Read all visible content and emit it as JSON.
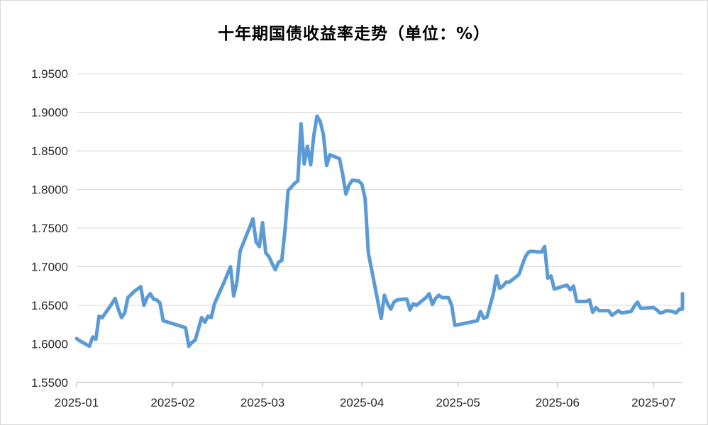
{
  "chart_data": {
    "type": "line",
    "title": "十年期国债收益率走势（单位：%）",
    "xlabel": "",
    "ylabel": "",
    "ylim": [
      1.55,
      1.95
    ],
    "yticks": [
      1.55,
      1.6,
      1.65,
      1.7,
      1.75,
      1.8,
      1.85,
      1.9,
      1.95
    ],
    "ytick_labels": [
      "1.5500",
      "1.6000",
      "1.6500",
      "1.7000",
      "1.7500",
      "1.8000",
      "1.8500",
      "1.9000",
      "1.9500"
    ],
    "xlim": [
      "2025-01-02",
      "2025-07-10"
    ],
    "xticks": [
      "2025-01-02",
      "2025-02-01",
      "2025-03-01",
      "2025-04-01",
      "2025-05-01",
      "2025-06-01",
      "2025-07-01"
    ],
    "xtick_labels": [
      "2025-01",
      "2025-02",
      "2025-03",
      "2025-04",
      "2025-05",
      "2025-06",
      "2025-07"
    ],
    "grid": true,
    "legend": "none",
    "line_color": "#5b9bd5",
    "series": [
      {
        "points": [
          [
            "2025-01-02",
            1.607
          ],
          [
            "2025-01-03",
            1.604
          ],
          [
            "2025-01-06",
            1.597
          ],
          [
            "2025-01-07",
            1.609
          ],
          [
            "2025-01-08",
            1.606
          ],
          [
            "2025-01-09",
            1.636
          ],
          [
            "2025-01-10",
            1.634
          ],
          [
            "2025-01-13",
            1.652
          ],
          [
            "2025-01-14",
            1.659
          ],
          [
            "2025-01-15",
            1.645
          ],
          [
            "2025-01-16",
            1.634
          ],
          [
            "2025-01-17",
            1.64
          ],
          [
            "2025-01-18",
            1.66
          ],
          [
            "2025-01-20",
            1.668
          ],
          [
            "2025-01-22",
            1.674
          ],
          [
            "2025-01-23",
            1.65
          ],
          [
            "2025-01-24",
            1.66
          ],
          [
            "2025-01-25",
            1.665
          ],
          [
            "2025-01-26",
            1.658
          ],
          [
            "2025-01-27",
            1.657
          ],
          [
            "2025-01-28",
            1.653
          ],
          [
            "2025-01-29",
            1.63
          ],
          [
            "2025-02-05",
            1.621
          ],
          [
            "2025-02-06",
            1.597
          ],
          [
            "2025-02-07",
            1.602
          ],
          [
            "2025-02-08",
            1.605
          ],
          [
            "2025-02-10",
            1.634
          ],
          [
            "2025-02-11",
            1.628
          ],
          [
            "2025-02-12",
            1.636
          ],
          [
            "2025-02-13",
            1.634
          ],
          [
            "2025-02-14",
            1.652
          ],
          [
            "2025-02-17",
            1.68
          ],
          [
            "2025-02-18",
            1.69
          ],
          [
            "2025-02-19",
            1.7
          ],
          [
            "2025-02-20",
            1.662
          ],
          [
            "2025-02-21",
            1.68
          ],
          [
            "2025-02-22",
            1.72
          ],
          [
            "2025-02-24",
            1.741
          ],
          [
            "2025-02-25",
            1.751
          ],
          [
            "2025-02-26",
            1.762
          ],
          [
            "2025-02-27",
            1.732
          ],
          [
            "2025-02-28",
            1.726
          ],
          [
            "2025-03-01",
            1.757
          ],
          [
            "2025-03-02",
            1.718
          ],
          [
            "2025-03-03",
            1.713
          ],
          [
            "2025-03-04",
            1.704
          ],
          [
            "2025-03-05",
            1.696
          ],
          [
            "2025-03-06",
            1.706
          ],
          [
            "2025-03-07",
            1.708
          ],
          [
            "2025-03-08",
            1.747
          ],
          [
            "2025-03-09",
            1.799
          ],
          [
            "2025-03-10",
            1.803
          ],
          [
            "2025-03-11",
            1.808
          ],
          [
            "2025-03-12",
            1.811
          ],
          [
            "2025-03-13",
            1.885
          ],
          [
            "2025-03-14",
            1.833
          ],
          [
            "2025-03-15",
            1.856
          ],
          [
            "2025-03-16",
            1.832
          ],
          [
            "2025-03-17",
            1.87
          ],
          [
            "2025-03-18",
            1.895
          ],
          [
            "2025-03-19",
            1.888
          ],
          [
            "2025-03-20",
            1.871
          ],
          [
            "2025-03-21",
            1.831
          ],
          [
            "2025-03-22",
            1.845
          ],
          [
            "2025-03-25",
            1.84
          ],
          [
            "2025-03-26",
            1.82
          ],
          [
            "2025-03-27",
            1.794
          ],
          [
            "2025-03-28",
            1.806
          ],
          [
            "2025-03-29",
            1.812
          ],
          [
            "2025-03-31",
            1.811
          ],
          [
            "2025-04-01",
            1.807
          ],
          [
            "2025-04-02",
            1.788
          ],
          [
            "2025-04-03",
            1.718
          ],
          [
            "2025-04-07",
            1.633
          ],
          [
            "2025-04-08",
            1.663
          ],
          [
            "2025-04-09",
            1.652
          ],
          [
            "2025-04-10",
            1.645
          ],
          [
            "2025-04-11",
            1.654
          ],
          [
            "2025-04-12",
            1.657
          ],
          [
            "2025-04-14",
            1.658
          ],
          [
            "2025-04-15",
            1.658
          ],
          [
            "2025-04-16",
            1.644
          ],
          [
            "2025-04-17",
            1.652
          ],
          [
            "2025-04-18",
            1.65
          ],
          [
            "2025-04-21",
            1.66
          ],
          [
            "2025-04-22",
            1.665
          ],
          [
            "2025-04-23",
            1.651
          ],
          [
            "2025-04-24",
            1.659
          ],
          [
            "2025-04-25",
            1.663
          ],
          [
            "2025-04-26",
            1.66
          ],
          [
            "2025-04-28",
            1.66
          ],
          [
            "2025-04-29",
            1.65
          ],
          [
            "2025-04-30",
            1.624
          ],
          [
            "2025-05-07",
            1.63
          ],
          [
            "2025-05-08",
            1.642
          ],
          [
            "2025-05-09",
            1.633
          ],
          [
            "2025-05-10",
            1.635
          ],
          [
            "2025-05-12",
            1.665
          ],
          [
            "2025-05-13",
            1.688
          ],
          [
            "2025-05-14",
            1.672
          ],
          [
            "2025-05-15",
            1.675
          ],
          [
            "2025-05-16",
            1.68
          ],
          [
            "2025-05-17",
            1.68
          ],
          [
            "2025-05-20",
            1.69
          ],
          [
            "2025-05-21",
            1.702
          ],
          [
            "2025-05-22",
            1.713
          ],
          [
            "2025-05-23",
            1.719
          ],
          [
            "2025-05-24",
            1.72
          ],
          [
            "2025-05-26",
            1.719
          ],
          [
            "2025-05-27",
            1.719
          ],
          [
            "2025-05-28",
            1.726
          ],
          [
            "2025-05-29",
            1.685
          ],
          [
            "2025-05-30",
            1.688
          ],
          [
            "2025-05-31",
            1.671
          ],
          [
            "2025-06-03",
            1.675
          ],
          [
            "2025-06-04",
            1.676
          ],
          [
            "2025-06-05",
            1.67
          ],
          [
            "2025-06-06",
            1.675
          ],
          [
            "2025-06-07",
            1.655
          ],
          [
            "2025-06-10",
            1.655
          ],
          [
            "2025-06-11",
            1.657
          ],
          [
            "2025-06-12",
            1.641
          ],
          [
            "2025-06-13",
            1.647
          ],
          [
            "2025-06-14",
            1.643
          ],
          [
            "2025-06-17",
            1.643
          ],
          [
            "2025-06-18",
            1.637
          ],
          [
            "2025-06-19",
            1.64
          ],
          [
            "2025-06-20",
            1.643
          ],
          [
            "2025-06-21",
            1.64
          ],
          [
            "2025-06-24",
            1.642
          ],
          [
            "2025-06-25",
            1.649
          ],
          [
            "2025-06-26",
            1.654
          ],
          [
            "2025-06-27",
            1.646
          ],
          [
            "2025-07-01",
            1.647
          ],
          [
            "2025-07-02",
            1.644
          ],
          [
            "2025-07-03",
            1.64
          ],
          [
            "2025-07-04",
            1.641
          ],
          [
            "2025-07-05",
            1.643
          ],
          [
            "2025-07-07",
            1.642
          ],
          [
            "2025-07-08",
            1.64
          ],
          [
            "2025-07-09",
            1.645
          ],
          [
            "2025-07-09",
            1.645
          ],
          [
            "2025-07-10",
            1.645
          ],
          [
            "2025-07-10",
            1.662
          ],
          [
            "2025-07-10",
            1.665
          ]
        ]
      }
    ]
  }
}
